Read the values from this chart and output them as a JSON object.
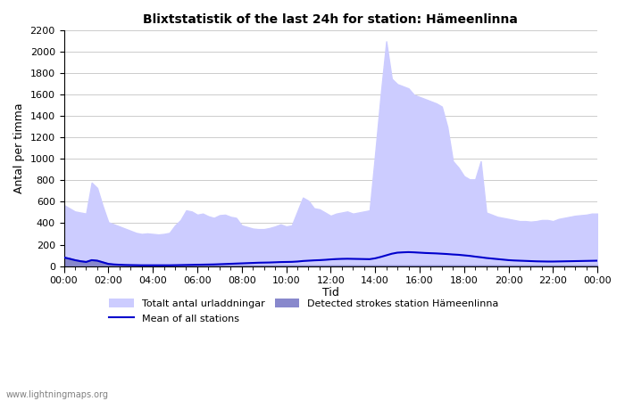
{
  "title": "Blixtstatistik of the last 24h for station: Hämeenlinna",
  "ylabel": "Antal per timma",
  "xlabel": "Tid",
  "watermark": "www.lightningmaps.org",
  "ylim": [
    0,
    2200
  ],
  "yticks": [
    0,
    200,
    400,
    600,
    800,
    1000,
    1200,
    1400,
    1600,
    1800,
    2000,
    2200
  ],
  "xtick_labels": [
    "00:00",
    "02:00",
    "04:00",
    "06:00",
    "08:00",
    "10:00",
    "12:00",
    "14:00",
    "16:00",
    "18:00",
    "20:00",
    "22:00",
    "00:00"
  ],
  "legend_labels": [
    "Totalt antal urladdningar",
    "Mean of all stations",
    "Detected strokes station Hämeenlinna"
  ],
  "color_total": "#ccccff",
  "color_detected": "#8888cc",
  "color_mean": "#0000cc",
  "x_hours": [
    0,
    0.25,
    0.5,
    0.75,
    1.0,
    1.25,
    1.5,
    1.75,
    2.0,
    2.25,
    2.5,
    2.75,
    3.0,
    3.25,
    3.5,
    3.75,
    4.0,
    4.25,
    4.5,
    4.75,
    5.0,
    5.25,
    5.5,
    5.75,
    6.0,
    6.25,
    6.5,
    6.75,
    7.0,
    7.25,
    7.5,
    7.75,
    8.0,
    8.25,
    8.5,
    8.75,
    9.0,
    9.25,
    9.5,
    9.75,
    10.0,
    10.25,
    10.5,
    10.75,
    11.0,
    11.25,
    11.5,
    11.75,
    12.0,
    12.25,
    12.5,
    12.75,
    13.0,
    13.25,
    13.5,
    13.75,
    14.0,
    14.25,
    14.5,
    14.75,
    15.0,
    15.25,
    15.5,
    15.75,
    16.0,
    16.25,
    16.5,
    16.75,
    17.0,
    17.25,
    17.5,
    17.75,
    18.0,
    18.25,
    18.5,
    18.75,
    19.0,
    19.25,
    19.5,
    19.75,
    20.0,
    20.25,
    20.5,
    20.75,
    21.0,
    21.25,
    21.5,
    21.75,
    22.0,
    22.25,
    22.5,
    22.75,
    23.0,
    23.25,
    23.5,
    23.75,
    24.0
  ],
  "total_urladdningar": [
    570,
    540,
    510,
    500,
    490,
    780,
    730,
    560,
    410,
    390,
    370,
    350,
    330,
    310,
    300,
    305,
    300,
    295,
    300,
    310,
    380,
    430,
    520,
    510,
    480,
    490,
    465,
    450,
    475,
    480,
    460,
    450,
    380,
    365,
    350,
    345,
    345,
    355,
    370,
    390,
    370,
    380,
    510,
    640,
    610,
    540,
    530,
    500,
    470,
    490,
    500,
    510,
    490,
    500,
    510,
    520,
    1050,
    1600,
    2100,
    1750,
    1700,
    1680,
    1660,
    1600,
    1580,
    1560,
    1540,
    1520,
    1490,
    1300,
    980,
    920,
    840,
    810,
    810,
    980,
    500,
    480,
    460,
    450,
    440,
    430,
    420,
    420,
    415,
    420,
    430,
    430,
    420,
    440,
    450,
    460,
    470,
    475,
    480,
    490,
    490
  ],
  "detected_strokes": [
    85,
    75,
    60,
    50,
    45,
    60,
    55,
    40,
    25,
    18,
    15,
    12,
    10,
    8,
    7,
    7,
    6,
    6,
    6,
    6,
    6,
    6,
    6,
    6,
    6,
    6,
    6,
    6,
    6,
    6,
    6,
    6,
    6,
    6,
    6,
    6,
    6,
    6,
    6,
    6,
    6,
    6,
    6,
    6,
    6,
    6,
    6,
    6,
    6,
    6,
    6,
    6,
    6,
    6,
    6,
    6,
    6,
    6,
    6,
    6,
    6,
    6,
    6,
    6,
    6,
    6,
    6,
    6,
    6,
    6,
    6,
    6,
    6,
    6,
    6,
    6,
    6,
    6,
    6,
    6,
    6,
    6,
    6,
    6,
    6,
    6,
    6,
    6,
    6,
    6,
    6,
    6,
    6,
    6,
    6,
    6,
    6
  ],
  "mean_all_stations": [
    80,
    68,
    55,
    45,
    38,
    55,
    50,
    35,
    20,
    15,
    12,
    10,
    9,
    8,
    7,
    7,
    7,
    7,
    7,
    7,
    8,
    9,
    10,
    11,
    12,
    13,
    14,
    15,
    17,
    19,
    21,
    23,
    25,
    27,
    29,
    31,
    32,
    33,
    35,
    37,
    38,
    39,
    42,
    47,
    50,
    53,
    55,
    58,
    62,
    65,
    67,
    68,
    67,
    66,
    65,
    64,
    72,
    85,
    100,
    115,
    125,
    128,
    130,
    128,
    125,
    122,
    120,
    118,
    115,
    112,
    108,
    105,
    100,
    95,
    88,
    82,
    75,
    70,
    65,
    60,
    55,
    52,
    50,
    48,
    46,
    44,
    43,
    42,
    42,
    43,
    44,
    45,
    46,
    47,
    48,
    49,
    50
  ]
}
